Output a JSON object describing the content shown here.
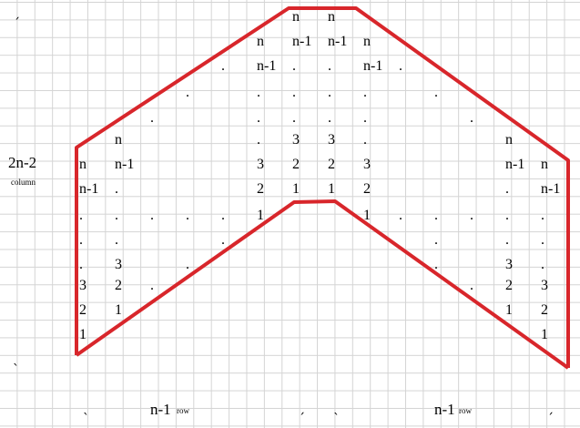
{
  "outline_color": "#d8262b",
  "grid_color": "#d4d4d4",
  "labels": {
    "column_count": "2n-2",
    "column_word": "column",
    "row_count_left": "n-1",
    "row_word_left": "row",
    "row_count_right": "n-1",
    "row_word_right": "row"
  },
  "tick_mark": "ˎ",
  "tick_mark_alt": "ˏ"
}
